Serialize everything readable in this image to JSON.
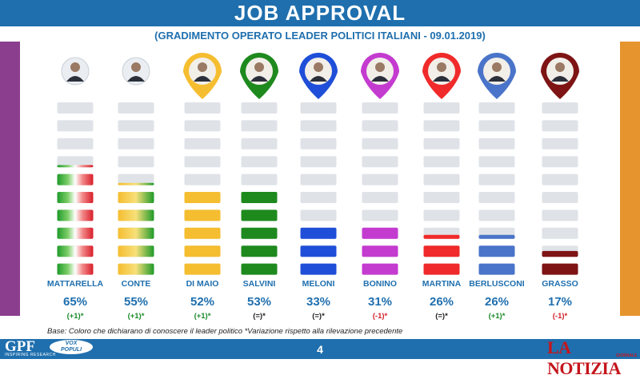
{
  "header": {
    "title": "JOB APPROVAL",
    "subtitle": "(GRADIMENTO OPERATO LEADER POLITICI ITALIANI - 09.01.2019)"
  },
  "footnote": "Base: Coloro che dichiarano di conoscere il leader politico  *Variazione rispetto alla rilevazione precedente",
  "page_number": "4",
  "logos": {
    "left": "GPF",
    "left_sub": "INSPIRING RESEARCH",
    "badge_line1": "VOX",
    "badge_line2": "POPULI",
    "right": "LA NOTIZIA",
    "right_sub": "GIORNALE"
  },
  "colors": {
    "header_bar": "#1f6fae",
    "side_left": "#8b3e8e",
    "side_right": "#e6952e",
    "empty_block": "#dfe3e8",
    "positive_change": "#1a8a2a",
    "negative_change": "#d2202a",
    "neutral_change": "#222222",
    "value_text": "#1f6fae"
  },
  "chart_data": {
    "type": "bar",
    "categories": [
      "MATTARELLA",
      "CONTE",
      "DI MAIO",
      "SALVINI",
      "MELONI",
      "BONINO",
      "MARTINA",
      "BERLUSCONI",
      "GRASSO"
    ],
    "values": [
      65,
      55,
      52,
      53,
      33,
      31,
      26,
      26,
      17
    ],
    "value_labels": [
      "65%",
      "55%",
      "52%",
      "53%",
      "33%",
      "31%",
      "26%",
      "26%",
      "17%"
    ],
    "changes": [
      "(+1)*",
      "(+1)*",
      "(+1)*",
      "(=)*",
      "(=)*",
      "(-1)*",
      "(=)*",
      "(+1)*",
      "(-1)*"
    ],
    "change_direction": [
      "up",
      "up",
      "up",
      "same",
      "same",
      "down",
      "same",
      "up",
      "down"
    ],
    "ylim": [
      0,
      100
    ],
    "blocks_per_column": 10,
    "bar_fill": [
      "tricolore",
      "tricolore-yellow",
      "#f5bd30",
      "#1e8a1e",
      "#1f4fd8",
      "#c43bd0",
      "#f02a2a",
      "#4a74c9",
      "#7e1414"
    ],
    "pin_colors": [
      "none",
      "none",
      "#f5bd30",
      "#1e8a1e",
      "#1f4fd8",
      "#c43bd0",
      "#f02a2a",
      "#4a74c9",
      "#7e1414"
    ]
  }
}
